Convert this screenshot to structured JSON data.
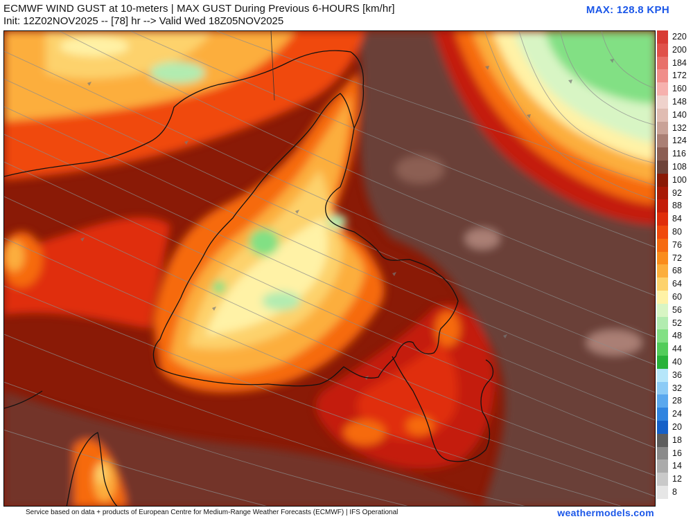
{
  "header": {
    "title": "ECMWF WIND GUST at 10-meters | MAX GUST During Previous 6-HOURS [km/hr]",
    "subtitle": "Init: 12Z02NOV2025 -- [78] hr --> Valid Wed 18Z05NOV2025",
    "max_label": "MAX: 128.8 KPH"
  },
  "legend": {
    "items": [
      {
        "label": "220",
        "color": "#d83b34"
      },
      {
        "label": "200",
        "color": "#e0514a"
      },
      {
        "label": "184",
        "color": "#e8706a"
      },
      {
        "label": "172",
        "color": "#f08e8a"
      },
      {
        "label": "160",
        "color": "#f6b1ae"
      },
      {
        "label": "148",
        "color": "#efd2cc"
      },
      {
        "label": "140",
        "color": "#e0bcb2"
      },
      {
        "label": "132",
        "color": "#c9a297"
      },
      {
        "label": "124",
        "color": "#aa7f74"
      },
      {
        "label": "116",
        "color": "#8c5e53"
      },
      {
        "label": "108",
        "color": "#6e4238"
      },
      {
        "label": "100",
        "color": "#8a1a06"
      },
      {
        "label": "92",
        "color": "#a81a06"
      },
      {
        "label": "88",
        "color": "#c41c08"
      },
      {
        "label": "84",
        "color": "#e02d0a"
      },
      {
        "label": "80",
        "color": "#f0490c"
      },
      {
        "label": "76",
        "color": "#f66a10"
      },
      {
        "label": "72",
        "color": "#fa8c1c"
      },
      {
        "label": "68",
        "color": "#fcae3c"
      },
      {
        "label": "64",
        "color": "#fdd26c"
      },
      {
        "label": "60",
        "color": "#fff2a6"
      },
      {
        "label": "56",
        "color": "#d8f5c4"
      },
      {
        "label": "52",
        "color": "#b2ecb0"
      },
      {
        "label": "48",
        "color": "#82e084"
      },
      {
        "label": "44",
        "color": "#52cc5a"
      },
      {
        "label": "40",
        "color": "#28b23a"
      },
      {
        "label": "36",
        "color": "#b6e6fa"
      },
      {
        "label": "32",
        "color": "#8ccbf6"
      },
      {
        "label": "28",
        "color": "#5aa8ee"
      },
      {
        "label": "24",
        "color": "#2f84e0"
      },
      {
        "label": "20",
        "color": "#1560c8"
      },
      {
        "label": "18",
        "color": "#5e5e5e"
      },
      {
        "label": "16",
        "color": "#8a8a8a"
      },
      {
        "label": "14",
        "color": "#ababab"
      },
      {
        "label": "12",
        "color": "#c9c9c9"
      },
      {
        "label": "8",
        "color": "#e6e6e6"
      }
    ]
  },
  "map": {
    "colors": {
      "brown": "#6b3f37",
      "brown_light": "#8c5e53",
      "dark_red": "#8a1a06",
      "red": "#c41c08",
      "red_orange": "#e02d0a",
      "orange": "#f66a10",
      "light_orange": "#fcae3c",
      "yellow": "#fdd26c",
      "pale_yellow": "#fff2a6",
      "light_green": "#b2ecb0",
      "green": "#52cc5a"
    }
  },
  "footer": {
    "credit": "Service based on data + products of European Centre for Medium-Range Weather Forecasts (ECMWF) | IFS Operational",
    "site": "weathermodels.com"
  }
}
